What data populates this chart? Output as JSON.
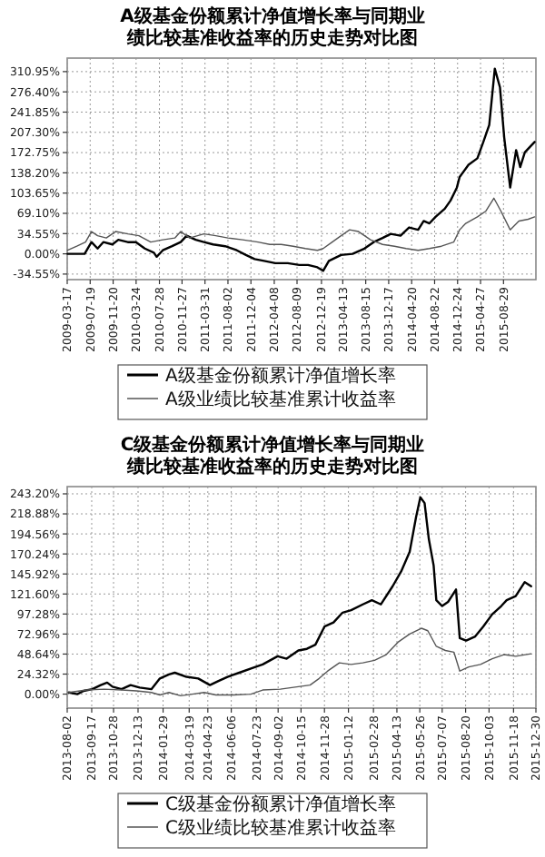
{
  "chart_data": [
    {
      "type": "line",
      "title": "A级基金份额累计净值增长率与同期业绩比较基准收益率的历史走势对比图",
      "grid": true,
      "legend": "bottom",
      "xlim": [
        "2009-03-17",
        "2016-02-20"
      ],
      "xticks": [
        "2009-03-17",
        "2009-07-19",
        "2009-11-20",
        "2010-03-24",
        "2010-07-28",
        "2010-11-27",
        "2011-03-31",
        "2011-08-02",
        "2011-12-04",
        "2012-04-08",
        "2012-08-09",
        "2012-12-19",
        "2013-04-13",
        "2013-08-15",
        "2013-12-17",
        "2014-04-20",
        "2014-08-22",
        "2014-12-24",
        "2015-04-27",
        "2015-08-29"
      ],
      "ylim": [
        -44,
        334
      ],
      "yticks": [
        {
          "value": -34.55,
          "label": "-34.55%"
        },
        {
          "value": 0,
          "label": "0.00%"
        },
        {
          "value": 34.55,
          "label": "34.55%"
        },
        {
          "value": 69.1,
          "label": "69.10%"
        },
        {
          "value": 103.65,
          "label": "103.65%"
        },
        {
          "value": 138.2,
          "label": "138.20%"
        },
        {
          "value": 172.75,
          "label": "172.75%"
        },
        {
          "value": 207.3,
          "label": "207.30%"
        },
        {
          "value": 241.85,
          "label": "241.85%"
        },
        {
          "value": 276.4,
          "label": "276.40%"
        },
        {
          "value": 310.95,
          "label": "310.95%"
        }
      ],
      "series": [
        {
          "name": "A级基金份额累计净值增长率",
          "color": "#000000",
          "x": [
            "2009-03-19",
            "2009-06-19",
            "2009-07-26",
            "2009-08-28",
            "2009-09-28",
            "2009-11-16",
            "2009-12-18",
            "2010-02-07",
            "2010-03-23",
            "2010-05-10",
            "2010-06-28",
            "2010-07-13",
            "2010-08-15",
            "2010-10-04",
            "2010-11-20",
            "2010-12-22",
            "2011-02-09",
            "2011-03-25",
            "2011-05-14",
            "2011-07-18",
            "2011-09-19",
            "2011-11-07",
            "2011-12-24",
            "2012-02-13",
            "2012-04-14",
            "2012-06-20",
            "2012-08-21",
            "2012-10-08",
            "2012-11-27",
            "2012-12-28",
            "2013-01-28",
            "2013-04-04",
            "2013-06-05",
            "2013-08-08",
            "2013-09-27",
            "2013-11-14",
            "2013-12-28",
            "2014-02-19",
            "2014-04-06",
            "2014-05-25",
            "2014-06-24",
            "2014-07-25",
            "2014-08-27",
            "2014-10-16",
            "2014-11-16",
            "2014-12-20",
            "2015-01-04",
            "2015-02-21",
            "2015-04-10",
            "2015-05-12",
            "2015-06-13",
            "2015-07-13",
            "2015-08-10",
            "2015-09-02",
            "2015-10-04",
            "2015-11-05",
            "2015-11-27",
            "2015-12-22",
            "2016-01-23",
            "2016-02-13"
          ],
          "values": [
            0,
            0,
            20,
            9,
            20,
            16,
            24,
            20,
            20,
            9,
            2,
            -5,
            6,
            13,
            20,
            31,
            24,
            20,
            16,
            13,
            6,
            -2,
            -9,
            -12,
            -16,
            -16,
            -19,
            -19,
            -23,
            -29,
            -12,
            -2,
            0,
            9,
            20,
            27,
            34,
            31,
            45,
            41,
            56,
            52,
            63,
            77,
            91,
            113,
            131,
            152,
            163,
            191,
            220,
            316,
            284,
            198,
            113,
            177,
            148,
            173,
            184,
            191
          ]
        },
        {
          "name": "A级业绩比较基准累计收益率",
          "color": "#555555",
          "x": [
            "2009-03-19",
            "2009-05-08",
            "2009-06-24",
            "2009-07-26",
            "2009-08-28",
            "2009-10-14",
            "2009-12-03",
            "2010-02-07",
            "2010-04-08",
            "2010-06-11",
            "2010-08-15",
            "2010-10-19",
            "2010-11-20",
            "2011-01-07",
            "2011-03-25",
            "2011-05-28",
            "2011-08-02",
            "2011-10-20",
            "2012-01-11",
            "2012-03-15",
            "2012-05-16",
            "2012-07-19",
            "2012-09-23",
            "2012-11-27",
            "2012-12-28",
            "2013-02-15",
            "2013-04-04",
            "2013-05-20",
            "2013-07-07",
            "2013-09-10",
            "2013-11-14",
            "2014-01-17",
            "2014-03-21",
            "2014-05-25",
            "2014-07-25",
            "2014-09-28",
            "2014-12-03",
            "2015-01-04",
            "2015-02-06",
            "2015-04-10",
            "2015-05-26",
            "2015-07-08",
            "2015-08-15",
            "2015-10-04",
            "2015-11-20",
            "2016-01-09",
            "2016-02-13"
          ],
          "values": [
            6,
            13,
            20,
            38,
            31,
            27,
            38,
            34,
            31,
            20,
            24,
            27,
            38,
            27,
            34,
            31,
            27,
            24,
            20,
            16,
            16,
            13,
            9,
            6,
            9,
            20,
            31,
            41,
            38,
            24,
            16,
            13,
            9,
            6,
            9,
            13,
            20,
            41,
            52,
            63,
            73,
            95,
            73,
            41,
            56,
            59,
            63
          ]
        }
      ]
    },
    {
      "type": "line",
      "title": "C级基金份额累计净值增长率与同期业绩比较基准收益率的历史走势对比图",
      "grid": true,
      "legend": "bottom",
      "xlim": [
        "2013-08-02",
        "2015-12-30"
      ],
      "xticks": [
        "2013-08-02",
        "2013-09-17",
        "2013-10-28",
        "2013-12-13",
        "2014-01-29",
        "2014-03-19",
        "2014-04-23",
        "2014-06-06",
        "2014-07-23",
        "2014-09-02",
        "2014-10-15",
        "2014-11-28",
        "2015-01-12",
        "2015-02-28",
        "2015-04-13",
        "2015-05-26",
        "2015-07-07",
        "2015-08-20",
        "2015-10-03",
        "2015-11-18",
        "2015-12-30"
      ],
      "ylim": [
        -17,
        252
      ],
      "yticks": [
        {
          "value": 0,
          "label": "0.00%"
        },
        {
          "value": 24.32,
          "label": "24.32%"
        },
        {
          "value": 48.64,
          "label": "48.64%"
        },
        {
          "value": 72.96,
          "label": "72.96%"
        },
        {
          "value": 97.28,
          "label": "97.28%"
        },
        {
          "value": 121.6,
          "label": "121.60%"
        },
        {
          "value": 145.92,
          "label": "145.92%"
        },
        {
          "value": 170.24,
          "label": "170.24%"
        },
        {
          "value": 194.56,
          "label": "194.56%"
        },
        {
          "value": 218.88,
          "label": "218.88%"
        },
        {
          "value": 243.2,
          "label": "243.20%"
        }
      ],
      "series": [
        {
          "name": "C级基金份额累计净值增长率",
          "color": "#000000",
          "x": [
            "2013-08-05",
            "2013-08-21",
            "2013-09-02",
            "2013-09-18",
            "2013-10-04",
            "2013-10-16",
            "2013-10-26",
            "2013-11-12",
            "2013-11-29",
            "2013-12-16",
            "2014-01-07",
            "2014-01-23",
            "2014-02-09",
            "2014-02-20",
            "2014-03-14",
            "2014-04-05",
            "2014-04-27",
            "2014-05-13",
            "2014-05-30",
            "2014-06-21",
            "2014-07-13",
            "2014-08-04",
            "2014-09-01",
            "2014-09-18",
            "2014-10-10",
            "2014-10-26",
            "2014-11-11",
            "2014-11-28",
            "2014-12-15",
            "2015-01-01",
            "2015-01-17",
            "2015-02-08",
            "2015-02-25",
            "2015-03-14",
            "2015-04-05",
            "2015-04-21",
            "2015-05-07",
            "2015-05-19",
            "2015-05-27",
            "2015-06-04",
            "2015-06-12",
            "2015-06-21",
            "2015-06-26",
            "2015-07-07",
            "2015-07-18",
            "2015-08-02",
            "2015-08-09",
            "2015-08-21",
            "2015-09-07",
            "2015-09-22",
            "2015-10-09",
            "2015-10-26",
            "2015-11-05",
            "2015-11-22",
            "2015-12-09",
            "2015-12-21"
          ],
          "values": [
            2,
            0,
            4,
            6,
            11,
            14,
            9,
            6,
            11,
            8,
            6,
            19,
            24,
            26,
            21,
            19,
            11,
            16,
            21,
            26,
            31,
            36,
            46,
            43,
            53,
            55,
            60,
            82,
            87,
            99,
            102,
            109,
            114,
            109,
            131,
            149,
            173,
            215,
            239,
            232,
            188,
            156,
            114,
            107,
            112,
            127,
            68,
            65,
            70,
            82,
            97,
            107,
            114,
            119,
            136,
            131
          ]
        },
        {
          "name": "C级业绩比较基准累计收益率",
          "color": "#555555",
          "x": [
            "2013-08-05",
            "2013-09-07",
            "2013-10-10",
            "2013-11-12",
            "2013-12-10",
            "2014-01-07",
            "2014-01-23",
            "2014-02-09",
            "2014-03-03",
            "2014-03-25",
            "2014-04-16",
            "2014-05-08",
            "2014-06-10",
            "2014-07-13",
            "2014-08-04",
            "2014-09-06",
            "2014-10-10",
            "2014-11-01",
            "2014-11-18",
            "2014-12-04",
            "2014-12-26",
            "2015-01-17",
            "2015-02-08",
            "2015-03-02",
            "2015-03-24",
            "2015-04-15",
            "2015-05-07",
            "2015-05-29",
            "2015-06-10",
            "2015-06-26",
            "2015-07-13",
            "2015-07-29",
            "2015-08-09",
            "2015-08-26",
            "2015-09-17",
            "2015-10-09",
            "2015-10-31",
            "2015-11-22",
            "2015-12-21"
          ],
          "values": [
            2,
            5,
            6,
            5,
            4,
            2,
            -1,
            2,
            -2,
            0,
            2,
            -1,
            -1,
            0,
            5,
            6,
            9,
            11,
            19,
            28,
            38,
            36,
            38,
            41,
            48,
            63,
            73,
            80,
            77,
            58,
            53,
            51,
            28,
            33,
            36,
            43,
            48,
            46,
            49
          ]
        }
      ]
    }
  ]
}
